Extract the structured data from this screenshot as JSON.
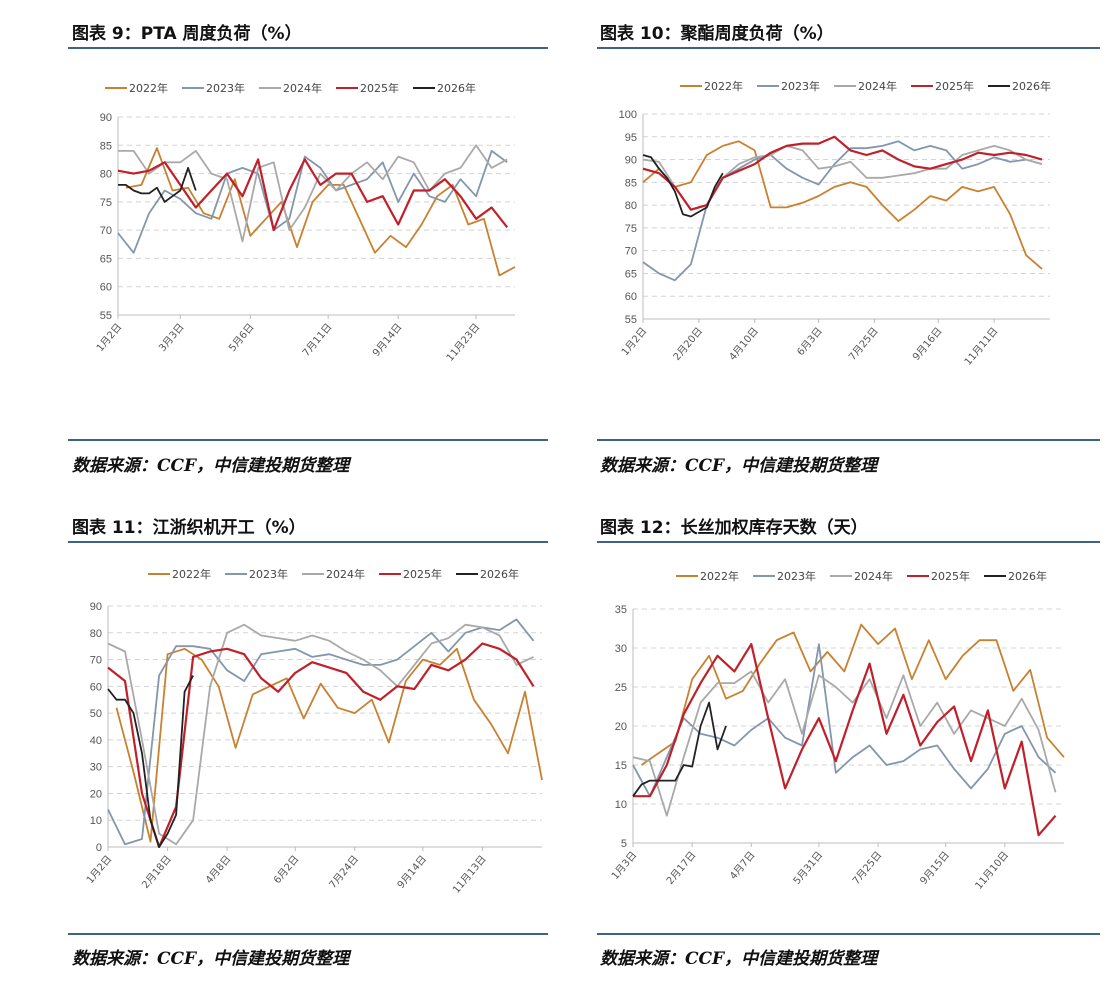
{
  "colors": {
    "rule": "#3d6189"
  },
  "series_colors": {
    "2022年": "#c8812f",
    "2023年": "#8496ae",
    "2024年": "#a9a9a9",
    "2025年": "#c0202a",
    "2026年": "#222222"
  },
  "sources": [
    "数据来源：CCF，中信建投期货整理",
    "数据来源：CCF，中信建投期货整理",
    "数据来源：CCF，中信建投期货整理",
    "数据来源：CCF，中信建投期货整理"
  ],
  "chart_data": [
    {
      "type": "line",
      "title": "图表 9：PTA 周度负荷（%）",
      "ylim": [
        55,
        90
      ],
      "yticks": [
        55,
        60,
        65,
        70,
        75,
        80,
        85,
        90
      ],
      "x_unit": "week",
      "xlim": [
        1,
        52
      ],
      "grid": true,
      "legend": "top",
      "xticks": [
        {
          "week": 1,
          "label": "1月2日"
        },
        {
          "week": 9,
          "label": "3月3日"
        },
        {
          "week": 18,
          "label": "5月6日"
        },
        {
          "week": 28,
          "label": "7月11日"
        },
        {
          "week": 37,
          "label": "9月14日"
        },
        {
          "week": 47,
          "label": "11月23日"
        }
      ],
      "series": [
        {
          "name": "2022年",
          "start_week": 2,
          "step": 2,
          "values": [
            77.5,
            78,
            84.5,
            77,
            77.5,
            73,
            72,
            79,
            69,
            72,
            75,
            67,
            75,
            78,
            78,
            72,
            66,
            69,
            67,
            71,
            76,
            78,
            71,
            72,
            62,
            63.5
          ]
        },
        {
          "name": "2023年",
          "start_week": 1,
          "step": 2,
          "values": [
            69.5,
            66,
            73,
            77,
            75.5,
            73,
            72,
            80,
            81,
            80,
            70,
            72,
            83,
            81,
            77,
            78,
            79,
            82,
            75,
            80,
            76,
            75,
            79,
            76,
            84,
            82
          ]
        },
        {
          "name": "2024年",
          "start_week": 1,
          "step": 2,
          "values": [
            84,
            84,
            80,
            82,
            82,
            84,
            80,
            79,
            68,
            81,
            82,
            70,
            74,
            80,
            77,
            80,
            82,
            79,
            83,
            82,
            77,
            80,
            81,
            85,
            81,
            82.5
          ]
        },
        {
          "name": "2025年",
          "start_week": 1,
          "step": 2,
          "values": [
            80.5,
            80,
            80.5,
            82,
            78,
            74,
            77,
            80,
            76,
            82.5,
            70,
            77,
            82.5,
            78,
            80,
            80,
            75,
            76,
            71,
            77,
            77,
            79,
            76,
            72,
            74,
            70.5
          ]
        },
        {
          "name": "2026年",
          "start_week": 1,
          "step": 1,
          "values": [
            78,
            78,
            77,
            76.5,
            76.5,
            77.5,
            75,
            76,
            77,
            81,
            77
          ]
        }
      ]
    },
    {
      "type": "line",
      "title": "图表 10：聚酯周度负荷（%）",
      "ylim": [
        55,
        100
      ],
      "yticks": [
        55,
        60,
        65,
        70,
        75,
        80,
        85,
        90,
        95,
        100
      ],
      "x_unit": "week",
      "xlim": [
        1,
        52
      ],
      "grid": true,
      "legend": "top",
      "xticks": [
        {
          "week": 1,
          "label": "1月2日"
        },
        {
          "week": 8,
          "label": "2月20日"
        },
        {
          "week": 15,
          "label": "4月10日"
        },
        {
          "week": 23,
          "label": "6月3日"
        },
        {
          "week": 30,
          "label": "7月25日"
        },
        {
          "week": 38,
          "label": "9月16日"
        },
        {
          "week": 45,
          "label": "11月11日"
        }
      ],
      "series": [
        {
          "name": "2022年",
          "start_week": 1,
          "step": 2,
          "values": [
            85,
            88,
            84,
            85,
            91,
            93,
            94,
            92,
            79.5,
            79.5,
            80.5,
            82,
            84,
            85,
            84,
            80,
            76.5,
            79,
            82,
            81,
            84,
            83,
            84,
            78,
            69,
            66
          ]
        },
        {
          "name": "2023年",
          "start_week": 1,
          "step": 2,
          "values": [
            67.5,
            65,
            63.5,
            67,
            80,
            86,
            88,
            90,
            91,
            88,
            86,
            84.5,
            89,
            92.5,
            92.5,
            93,
            94,
            92,
            93,
            92,
            88,
            89,
            90.5,
            89.5,
            90,
            89
          ]
        },
        {
          "name": "2024年",
          "start_week": 1,
          "step": 2,
          "values": [
            90,
            89.5,
            84,
            79,
            80,
            86,
            89,
            90.5,
            91,
            93,
            92,
            88,
            88.5,
            89.5,
            86,
            86,
            86.5,
            87,
            88,
            88,
            91,
            92,
            93,
            92,
            90,
            89
          ]
        },
        {
          "name": "2025年",
          "start_week": 1,
          "step": 2,
          "values": [
            88,
            87,
            84,
            79,
            80,
            86,
            87.5,
            89,
            91.5,
            93,
            93.5,
            93.5,
            95,
            92,
            91,
            92,
            90,
            88.5,
            88,
            89,
            90,
            91.5,
            91,
            91.5,
            91,
            90
          ]
        },
        {
          "name": "2026年",
          "start_week": 1,
          "step": 1,
          "values": [
            91,
            90.5,
            88,
            86,
            83,
            78,
            77.5,
            78.5,
            79.5,
            84,
            87
          ]
        }
      ]
    },
    {
      "type": "line",
      "title": "图表 11：江浙织机开工（%）",
      "ylim": [
        0,
        90
      ],
      "yticks": [
        0,
        10,
        20,
        30,
        40,
        50,
        60,
        70,
        80,
        90
      ],
      "x_unit": "week",
      "xlim": [
        1,
        52
      ],
      "grid": true,
      "legend": "top",
      "xticks": [
        {
          "week": 1,
          "label": "1月2日"
        },
        {
          "week": 8,
          "label": "2月18日"
        },
        {
          "week": 15,
          "label": "4月8日"
        },
        {
          "week": 23,
          "label": "6月2日"
        },
        {
          "week": 30,
          "label": "7月24日"
        },
        {
          "week": 38,
          "label": "9月14日"
        },
        {
          "week": 45,
          "label": "11月13日"
        }
      ],
      "series": [
        {
          "name": "2022年",
          "start_week": 2,
          "step": 2,
          "values": [
            52,
            28,
            2,
            72,
            74,
            70,
            60,
            37,
            57,
            60,
            63,
            48,
            61,
            52,
            50,
            55,
            39,
            62,
            70,
            68,
            74,
            55,
            46,
            35,
            58,
            25
          ]
        },
        {
          "name": "2023年",
          "start_week": 1,
          "step": 2,
          "values": [
            14,
            1,
            3,
            64,
            75,
            75,
            74,
            66,
            62,
            72,
            73,
            74,
            71,
            72,
            70,
            68,
            68,
            70,
            75,
            80,
            73,
            80,
            82,
            81,
            85,
            77
          ]
        },
        {
          "name": "2024年",
          "start_week": 1,
          "step": 2,
          "values": [
            76,
            73,
            40,
            5,
            1,
            10,
            60,
            80,
            83,
            79,
            78,
            77,
            79,
            77,
            73,
            70,
            66,
            60,
            68,
            76,
            78,
            83,
            82,
            79,
            68,
            71
          ]
        },
        {
          "name": "2025年",
          "start_week": 1,
          "step": 2,
          "values": [
            67,
            62,
            20,
            0,
            15,
            71,
            73,
            74,
            72,
            63,
            58,
            65,
            69,
            67,
            65,
            58,
            55,
            60,
            59,
            68,
            66,
            70,
            76,
            74,
            70,
            60
          ]
        },
        {
          "name": "2026年",
          "start_week": 1,
          "step": 1,
          "values": [
            59,
            55,
            55,
            50,
            35,
            10,
            0,
            5,
            12,
            58,
            64
          ]
        }
      ]
    },
    {
      "type": "line",
      "title": "图表 12：长丝加权库存天数（天）",
      "ylim": [
        5,
        35
      ],
      "yticks": [
        5,
        10,
        15,
        20,
        25,
        30,
        35
      ],
      "x_unit": "week",
      "xlim": [
        1,
        52
      ],
      "grid": true,
      "legend": "top",
      "xticks": [
        {
          "week": 1,
          "label": "1月3日"
        },
        {
          "week": 8,
          "label": "2月17日"
        },
        {
          "week": 15,
          "label": "4月7日"
        },
        {
          "week": 23,
          "label": "5月31日"
        },
        {
          "week": 30,
          "label": "7月25日"
        },
        {
          "week": 38,
          "label": "9月15日"
        },
        {
          "week": 45,
          "label": "11月10日"
        }
      ],
      "series": [
        {
          "name": "2022年",
          "start_week": 2,
          "step": 2,
          "values": [
            15,
            16.5,
            18,
            26,
            29,
            23.5,
            24.5,
            28,
            31,
            32,
            27,
            29.5,
            27,
            33,
            30.5,
            32.5,
            26,
            31,
            26,
            29,
            31,
            31,
            24.5,
            27.2,
            18.5,
            16
          ]
        },
        {
          "name": "2023年",
          "start_week": 1,
          "step": 2,
          "values": [
            15,
            11,
            16,
            21,
            19,
            18.5,
            17.5,
            19.5,
            21,
            18.5,
            17.5,
            30.5,
            14,
            16,
            17.5,
            15,
            15.5,
            17,
            17.5,
            14.5,
            12,
            14.5,
            19,
            20,
            16,
            14
          ]
        },
        {
          "name": "2024年",
          "start_week": 1,
          "step": 2,
          "values": [
            16,
            15.5,
            8.5,
            16,
            23,
            25.5,
            25.5,
            27,
            23,
            26,
            19,
            26.5,
            25,
            23,
            26,
            21,
            26.5,
            20,
            23,
            19,
            22,
            21,
            20,
            23.5,
            19.5,
            11.5
          ]
        },
        {
          "name": "2025年",
          "start_week": 1,
          "step": 2,
          "values": [
            11,
            11,
            15,
            21.5,
            25.5,
            29,
            27,
            30.5,
            21,
            12,
            17,
            21,
            15.5,
            22,
            28,
            19,
            24,
            17.5,
            20.5,
            22.5,
            15.5,
            22,
            12,
            18,
            6,
            8.5
          ]
        },
        {
          "name": "2026年",
          "start_week": 1,
          "step": 1,
          "values": [
            11,
            12.5,
            13,
            13,
            13,
            13,
            15,
            14.8,
            20,
            23,
            17,
            20
          ]
        }
      ]
    }
  ]
}
